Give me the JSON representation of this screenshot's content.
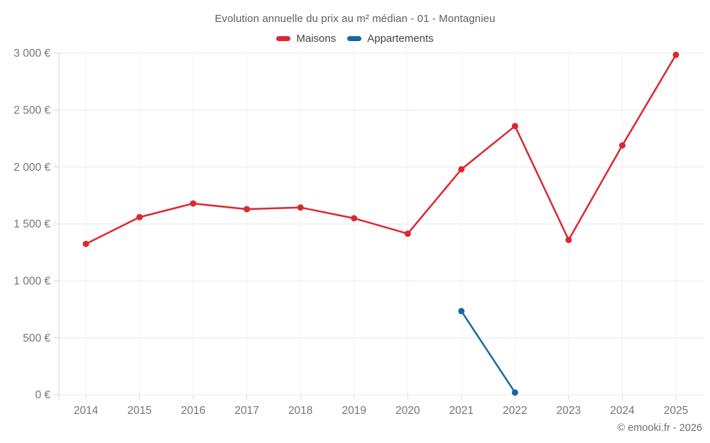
{
  "page": {
    "title": "Evolution annuelle du prix au m² médian - 01 - Montagnieu",
    "copyright": "© emooki.fr - 2026"
  },
  "legend": [
    {
      "label": "Maisons",
      "color": "#dc2731"
    },
    {
      "label": "Appartements",
      "color": "#17699e"
    }
  ],
  "chart_data": {
    "type": "line",
    "title": "Evolution annuelle du prix au m² médian - 01 - Montagnieu",
    "categories": [
      "2014",
      "2015",
      "2016",
      "2017",
      "2018",
      "2019",
      "2020",
      "2021",
      "2022",
      "2023",
      "2024",
      "2025"
    ],
    "series": [
      {
        "name": "Maisons",
        "color": "#dc2731",
        "values": [
          1325,
          1560,
          1680,
          1630,
          1645,
          1550,
          1415,
          1980,
          2360,
          1360,
          2190,
          2985
        ]
      },
      {
        "name": "Appartements",
        "color": "#17699e",
        "values": [
          null,
          null,
          null,
          null,
          null,
          null,
          null,
          735,
          20,
          null,
          null,
          null
        ]
      }
    ],
    "xlabel": "",
    "ylabel": "",
    "ylim": [
      0,
      3000
    ],
    "ytick_step": 500,
    "ytick_labels": [
      "0 €",
      "500 €",
      "1 000 €",
      "1 500 €",
      "2 000 €",
      "2 500 €",
      "3 000 €"
    ],
    "grid": true,
    "legend_position": "top"
  }
}
